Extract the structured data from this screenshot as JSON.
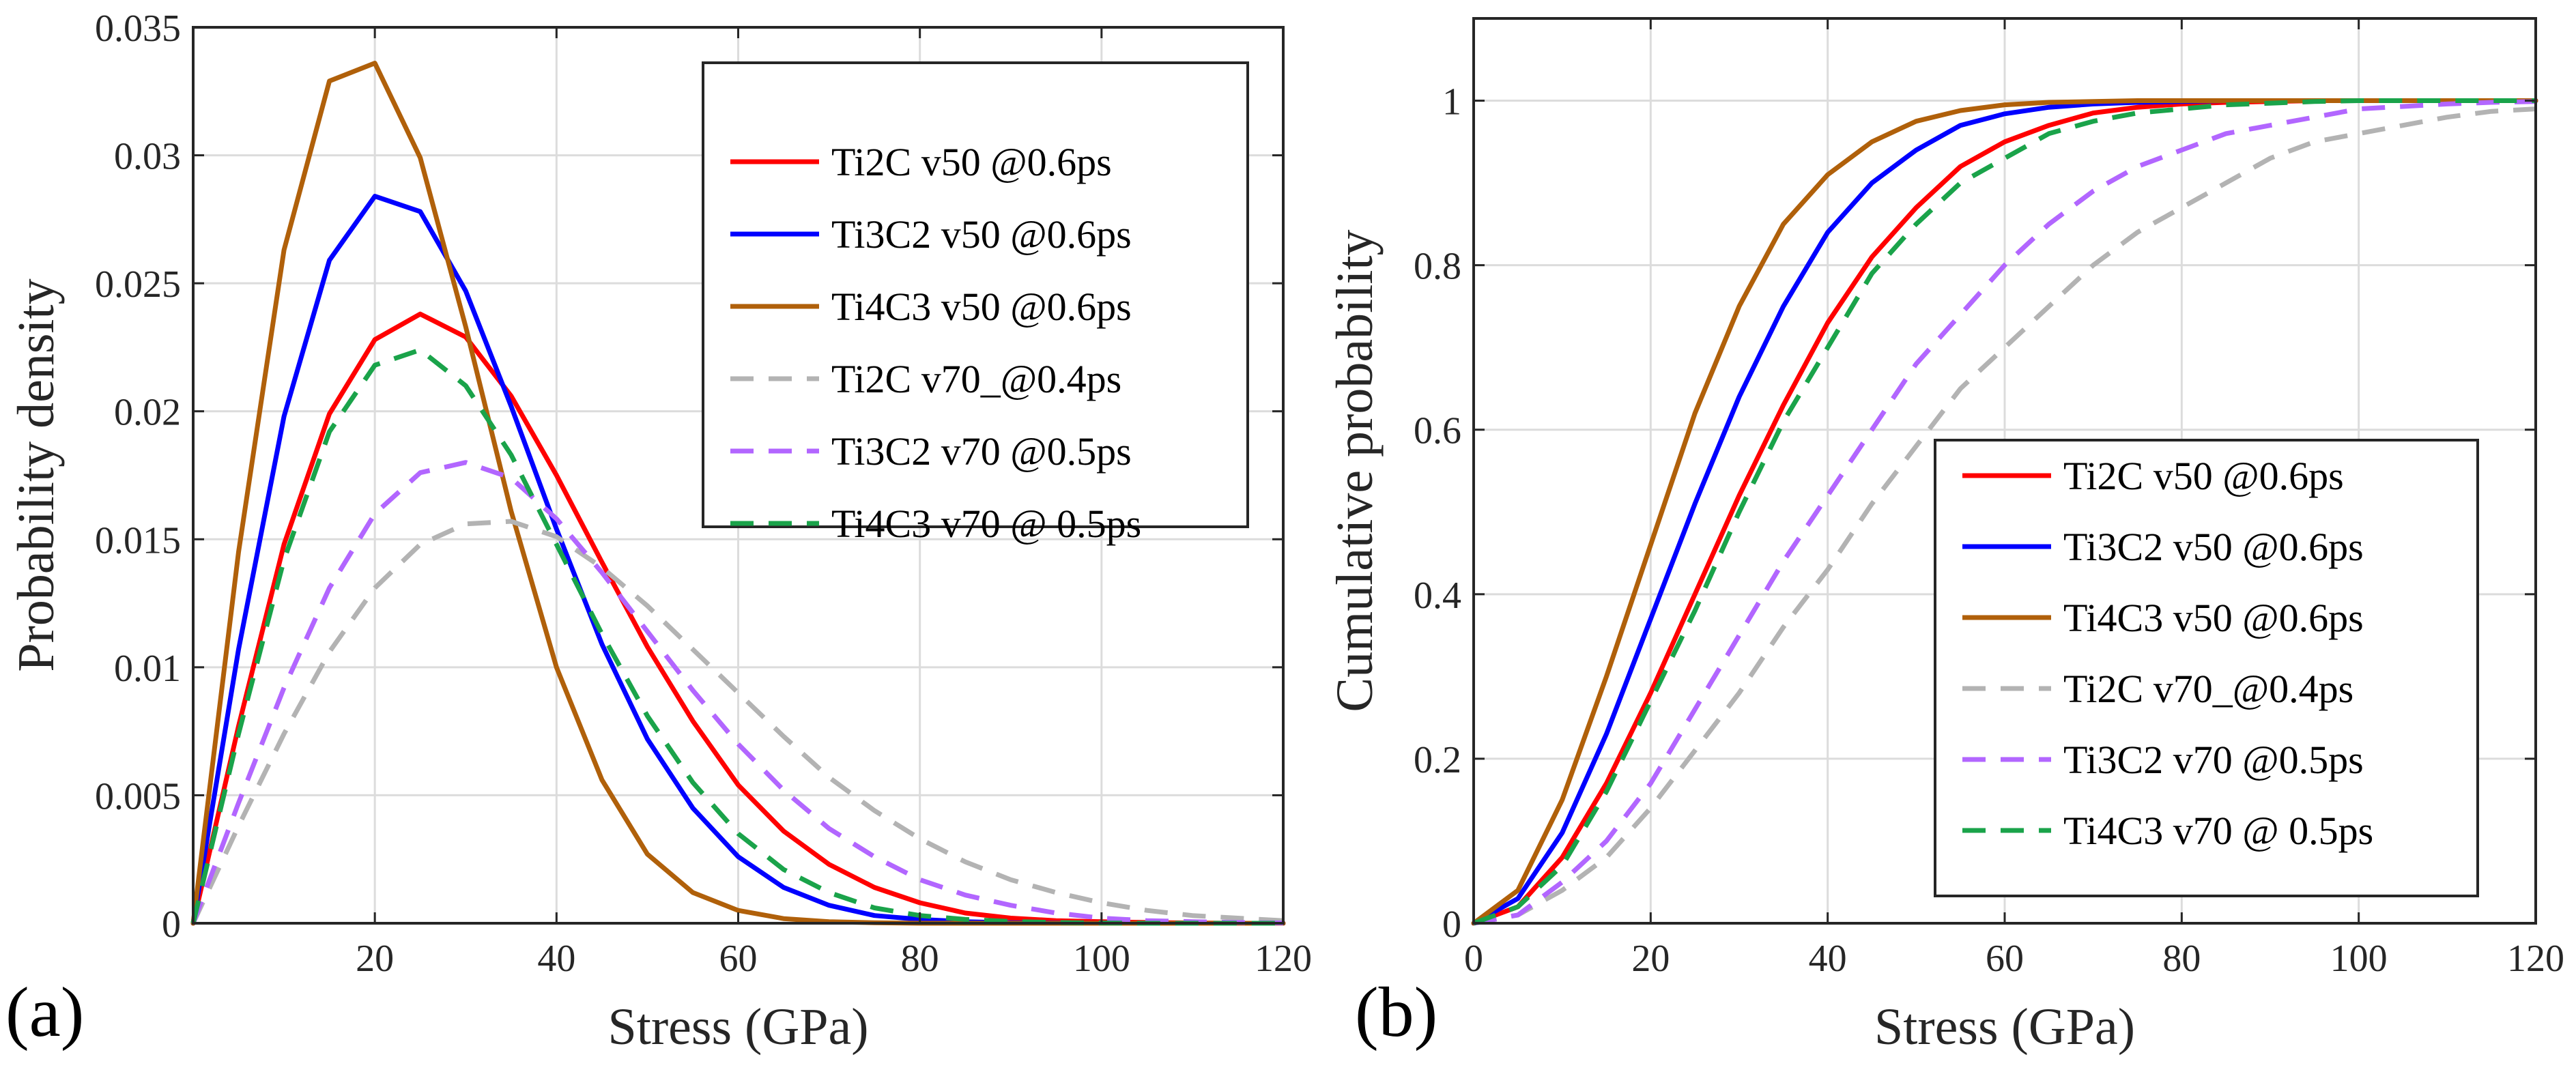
{
  "figure": {
    "panel_a_label": "(a)",
    "panel_b_label": "(b)"
  },
  "series_styles": [
    {
      "name": "Ti2C v50 @0.6ps",
      "color": "#ff0000",
      "dashed": false
    },
    {
      "name": "Ti3C2 v50 @0.6ps",
      "color": "#0000ff",
      "dashed": false
    },
    {
      "name": "Ti4C3 v50 @0.6ps",
      "color": "#b0600a",
      "dashed": false
    },
    {
      "name": "Ti2C v70_@0.4ps",
      "color": "#b3b3b3",
      "dashed": true
    },
    {
      "name": "Ti3C2 v70 @0.5ps",
      "color": "#b266ff",
      "dashed": true
    },
    {
      "name": "Ti4C3 v70 @ 0.5ps",
      "color": "#1aa34a",
      "dashed": true
    }
  ],
  "chart_data": [
    {
      "type": "line",
      "title": "",
      "xlabel": "Stress (GPa)",
      "ylabel": "Probability density",
      "xlim": [
        0,
        120
      ],
      "ylim": [
        0,
        0.035
      ],
      "xticks": [
        20,
        40,
        60,
        80,
        100,
        120
      ],
      "xtick_labels": [
        "20",
        "40",
        "60",
        "80",
        "100",
        "120"
      ],
      "yticks": [
        0,
        0.005,
        0.01,
        0.015,
        0.02,
        0.025,
        0.03,
        0.035
      ],
      "ytick_labels": [
        "0",
        "0.005",
        "0.01",
        "0.015",
        "0.02",
        "0.025",
        "0.03",
        "0.035"
      ],
      "grid": true,
      "legend_position": "top-right",
      "x": [
        0,
        5,
        10,
        15,
        20,
        25,
        30,
        35,
        40,
        45,
        50,
        55,
        60,
        65,
        70,
        75,
        80,
        85,
        90,
        95,
        100,
        105,
        110,
        115,
        120
      ],
      "series": [
        {
          "name": "Ti2C v50 @0.6ps",
          "values": [
            0,
            0.0077,
            0.0148,
            0.0199,
            0.0228,
            0.0238,
            0.0229,
            0.0206,
            0.0175,
            0.0141,
            0.0108,
            0.0079,
            0.0054,
            0.0036,
            0.0023,
            0.0014,
            0.0008,
            0.0004,
            0.0002,
            0.0001,
            6e-05,
            3e-05,
            1e-05,
            0,
            0
          ]
        },
        {
          "name": "Ti3C2 v50 @0.6ps",
          "values": [
            0,
            0.0107,
            0.0198,
            0.0259,
            0.0284,
            0.0278,
            0.0247,
            0.0202,
            0.0154,
            0.0109,
            0.0072,
            0.0045,
            0.0026,
            0.0014,
            0.0007,
            0.0003,
            0.00015,
            6e-05,
            2e-05,
            1e-05,
            0,
            0,
            0,
            0,
            0
          ]
        },
        {
          "name": "Ti4C3 v50 @0.6ps",
          "values": [
            0,
            0.0145,
            0.0263,
            0.0329,
            0.0336,
            0.0299,
            0.0233,
            0.0161,
            0.01,
            0.0056,
            0.0027,
            0.0012,
            0.0005,
            0.00018,
            6e-05,
            2e-05,
            0,
            0,
            0,
            0,
            0,
            0,
            0,
            0,
            0
          ]
        },
        {
          "name": "Ti2C v70_@0.4ps",
          "values": [
            0,
            0.0038,
            0.0074,
            0.0106,
            0.0131,
            0.0148,
            0.0156,
            0.0157,
            0.0151,
            0.0139,
            0.0124,
            0.0107,
            0.009,
            0.0073,
            0.0057,
            0.0044,
            0.0033,
            0.0024,
            0.0017,
            0.0012,
            0.0008,
            0.0005,
            0.0003,
            0.0002,
            0.0001
          ]
        },
        {
          "name": "Ti3C2 v70 @0.5ps",
          "values": [
            0,
            0.0047,
            0.0092,
            0.0131,
            0.016,
            0.0176,
            0.018,
            0.0174,
            0.0158,
            0.0137,
            0.0114,
            0.0091,
            0.007,
            0.0052,
            0.0037,
            0.0026,
            0.0017,
            0.0011,
            0.0007,
            0.0004,
            0.0002,
            0.0001,
            6e-05,
            3e-05,
            1e-05
          ]
        },
        {
          "name": "Ti4C3 v70 @ 0.5ps",
          "values": [
            0,
            0.0074,
            0.0142,
            0.0192,
            0.0218,
            0.0224,
            0.021,
            0.0183,
            0.0148,
            0.0113,
            0.0081,
            0.0055,
            0.0035,
            0.0021,
            0.0012,
            0.0006,
            0.0003,
            0.00015,
            7e-05,
            3e-05,
            1e-05,
            0,
            0,
            0,
            0
          ]
        }
      ]
    },
    {
      "type": "line",
      "title": "",
      "xlabel": "Stress (GPa)",
      "ylabel": "Cumulative probability",
      "xlim": [
        0,
        120
      ],
      "ylim": [
        0,
        1.1
      ],
      "xticks": [
        0,
        20,
        40,
        60,
        80,
        100,
        120
      ],
      "xtick_labels": [
        "0",
        "20",
        "40",
        "60",
        "80",
        "100",
        "120"
      ],
      "yticks": [
        0,
        0.2,
        0.4,
        0.6,
        0.8,
        1
      ],
      "ytick_labels": [
        "0",
        "0.2",
        "0.4",
        "0.6",
        "0.8",
        "1"
      ],
      "grid": true,
      "legend_position": "bottom-right",
      "x": [
        0,
        5,
        10,
        15,
        20,
        25,
        30,
        35,
        40,
        45,
        50,
        55,
        60,
        65,
        70,
        75,
        80,
        85,
        90,
        95,
        100,
        105,
        110,
        115,
        120
      ],
      "series": [
        {
          "name": "Ti2C v50 @0.6ps",
          "values": [
            0,
            0.02,
            0.08,
            0.17,
            0.28,
            0.4,
            0.52,
            0.63,
            0.73,
            0.81,
            0.87,
            0.92,
            0.95,
            0.97,
            0.985,
            0.992,
            0.996,
            0.998,
            0.999,
            1,
            1,
            1,
            1,
            1,
            1
          ]
        },
        {
          "name": "Ti3C2 v50 @0.6ps",
          "values": [
            0,
            0.03,
            0.11,
            0.23,
            0.37,
            0.51,
            0.64,
            0.75,
            0.84,
            0.9,
            0.94,
            0.97,
            0.984,
            0.992,
            0.996,
            0.998,
            0.999,
            1,
            1,
            1,
            1,
            1,
            1,
            1,
            1
          ]
        },
        {
          "name": "Ti4C3 v50 @0.6ps",
          "values": [
            0,
            0.04,
            0.15,
            0.3,
            0.46,
            0.62,
            0.75,
            0.85,
            0.91,
            0.95,
            0.975,
            0.988,
            0.995,
            0.998,
            0.999,
            1,
            1,
            1,
            1,
            1,
            1,
            1,
            1,
            1,
            1
          ]
        },
        {
          "name": "Ti2C v70_@0.4ps",
          "values": [
            0,
            0.01,
            0.04,
            0.08,
            0.14,
            0.21,
            0.28,
            0.36,
            0.43,
            0.51,
            0.58,
            0.65,
            0.7,
            0.75,
            0.8,
            0.84,
            0.87,
            0.9,
            0.93,
            0.95,
            0.96,
            0.97,
            0.98,
            0.987,
            0.99
          ]
        },
        {
          "name": "Ti3C2 v70 @0.5ps",
          "values": [
            0,
            0.01,
            0.05,
            0.1,
            0.17,
            0.26,
            0.35,
            0.44,
            0.52,
            0.6,
            0.68,
            0.74,
            0.8,
            0.85,
            0.89,
            0.92,
            0.94,
            0.96,
            0.97,
            0.98,
            0.99,
            0.993,
            0.996,
            0.998,
            0.999
          ]
        },
        {
          "name": "Ti4C3 v70 @ 0.5ps",
          "values": [
            0,
            0.02,
            0.07,
            0.16,
            0.27,
            0.38,
            0.5,
            0.61,
            0.7,
            0.79,
            0.85,
            0.9,
            0.93,
            0.96,
            0.975,
            0.985,
            0.99,
            0.995,
            0.997,
            0.999,
            1,
            1,
            1,
            1,
            1
          ]
        }
      ]
    }
  ]
}
